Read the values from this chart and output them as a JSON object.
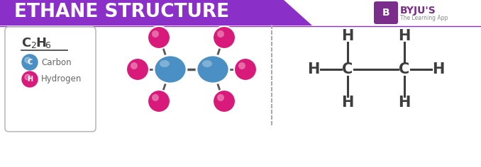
{
  "title": "ETHANE STRUCTURE",
  "title_bg_color": "#8B2FC9",
  "title_text_color": "#FFFFFF",
  "bg_color": "#FFFFFF",
  "carbon_color": "#4A90C4",
  "hydrogen_color": "#D81B7A",
  "bond_color": "#555555",
  "legend_carbon_label": "Carbon",
  "legend_hydrogen_label": "Hydrogen",
  "dashed_line_color": "#AAAAAA",
  "struct_text_color": "#3D3D3D",
  "byju_purple": "#7B2D8B",
  "byju_text_color": "#3D3D3D"
}
